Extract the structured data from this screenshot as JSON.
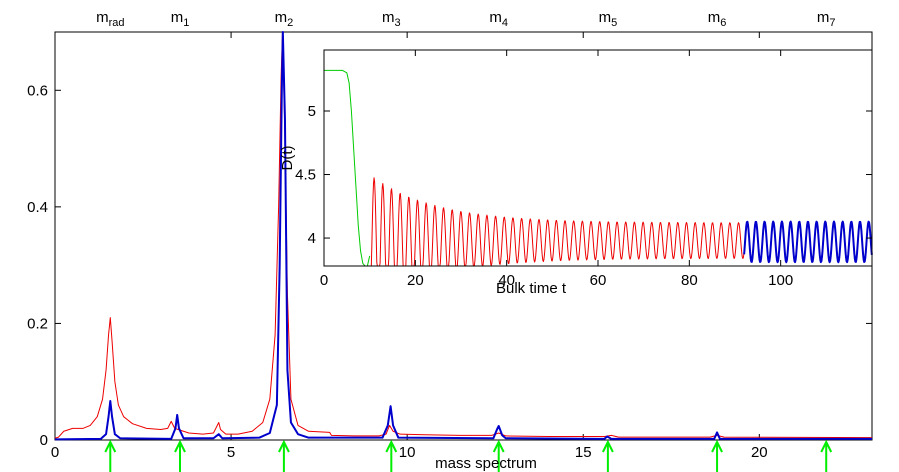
{
  "chart_data": [
    {
      "type": "line",
      "title": "",
      "xlabel": "mass spectrum",
      "ylabel": "",
      "xlim": [
        0,
        23.2
      ],
      "ylim": [
        0,
        0.7
      ],
      "xticks": [
        0,
        5,
        10,
        15,
        20
      ],
      "yticks": [
        0,
        0.2,
        0.4,
        0.6
      ],
      "ytick_labels": [
        "0",
        "0.2",
        "0.4",
        "0.6"
      ],
      "top_labels": [
        {
          "base": "m",
          "sub": "rad",
          "x": 1.57
        },
        {
          "base": "m",
          "sub": "1",
          "x": 3.55
        },
        {
          "base": "m",
          "sub": "2",
          "x": 6.5
        },
        {
          "base": "m",
          "sub": "3",
          "x": 9.55
        },
        {
          "base": "m",
          "sub": "4",
          "x": 12.6
        },
        {
          "base": "m",
          "sub": "5",
          "x": 15.7
        },
        {
          "base": "m",
          "sub": "6",
          "x": 18.8
        },
        {
          "base": "m",
          "sub": "7",
          "x": 21.9
        }
      ],
      "arrows_x": [
        1.57,
        3.55,
        6.5,
        9.55,
        12.6,
        15.7,
        18.8,
        21.9
      ],
      "arrow_color": "#00ee00",
      "series": [
        {
          "color": "#ee0000",
          "baseline": 0.004,
          "points": [
            [
              0,
              0.003
            ],
            [
              0.1,
              0.005
            ],
            [
              0.25,
              0.015
            ],
            [
              0.5,
              0.02
            ],
            [
              0.8,
              0.02
            ],
            [
              1.0,
              0.025
            ],
            [
              1.2,
              0.04
            ],
            [
              1.35,
              0.07
            ],
            [
              1.45,
              0.12
            ],
            [
              1.52,
              0.18
            ],
            [
              1.57,
              0.21
            ],
            [
              1.62,
              0.17
            ],
            [
              1.7,
              0.1
            ],
            [
              1.8,
              0.06
            ],
            [
              1.95,
              0.04
            ],
            [
              2.2,
              0.028
            ],
            [
              2.6,
              0.02
            ],
            [
              3.0,
              0.018
            ],
            [
              3.2,
              0.02
            ],
            [
              3.3,
              0.032
            ],
            [
              3.4,
              0.02
            ],
            [
              3.8,
              0.012
            ],
            [
              4.2,
              0.01
            ],
            [
              4.5,
              0.012
            ],
            [
              4.65,
              0.03
            ],
            [
              4.7,
              0.018
            ],
            [
              4.85,
              0.01
            ],
            [
              5.2,
              0.01
            ],
            [
              5.6,
              0.015
            ],
            [
              5.9,
              0.03
            ],
            [
              6.1,
              0.07
            ],
            [
              6.25,
              0.18
            ],
            [
              6.35,
              0.4
            ],
            [
              6.42,
              0.62
            ],
            [
              6.46,
              0.7
            ],
            [
              6.52,
              0.55
            ],
            [
              6.6,
              0.25
            ],
            [
              6.7,
              0.07
            ],
            [
              6.9,
              0.025
            ],
            [
              7.2,
              0.015
            ],
            [
              7.8,
              0.013
            ],
            [
              7.85,
              0.008
            ],
            [
              8.5,
              0.007
            ],
            [
              9.2,
              0.007
            ],
            [
              9.4,
              0.01
            ],
            [
              9.5,
              0.025
            ],
            [
              9.6,
              0.015
            ],
            [
              9.8,
              0.01
            ],
            [
              10.5,
              0.009
            ],
            [
              11.5,
              0.008
            ],
            [
              12.4,
              0.008
            ],
            [
              12.6,
              0.012
            ],
            [
              12.8,
              0.007
            ],
            [
              14,
              0.006
            ],
            [
              15.6,
              0.006
            ],
            [
              15.8,
              0.008
            ],
            [
              16,
              0.005
            ],
            [
              18.6,
              0.005
            ],
            [
              18.8,
              0.008
            ],
            [
              19,
              0.005
            ],
            [
              23.2,
              0.004
            ]
          ]
        },
        {
          "color": "#0000cc",
          "baseline": 0.002,
          "points": [
            [
              0,
              0.001
            ],
            [
              1.3,
              0.002
            ],
            [
              1.45,
              0.01
            ],
            [
              1.52,
              0.04
            ],
            [
              1.57,
              0.067
            ],
            [
              1.62,
              0.04
            ],
            [
              1.7,
              0.01
            ],
            [
              1.85,
              0.003
            ],
            [
              3.3,
              0.002
            ],
            [
              3.42,
              0.02
            ],
            [
              3.47,
              0.043
            ],
            [
              3.52,
              0.02
            ],
            [
              3.65,
              0.003
            ],
            [
              4.5,
              0.003
            ],
            [
              4.65,
              0.01
            ],
            [
              4.75,
              0.003
            ],
            [
              5.8,
              0.004
            ],
            [
              6.1,
              0.012
            ],
            [
              6.3,
              0.06
            ],
            [
              6.38,
              0.3
            ],
            [
              6.44,
              0.6
            ],
            [
              6.47,
              0.7
            ],
            [
              6.53,
              0.55
            ],
            [
              6.6,
              0.12
            ],
            [
              6.7,
              0.03
            ],
            [
              6.9,
              0.01
            ],
            [
              7.2,
              0.004
            ],
            [
              9.3,
              0.004
            ],
            [
              9.45,
              0.025
            ],
            [
              9.53,
              0.058
            ],
            [
              9.6,
              0.025
            ],
            [
              9.75,
              0.004
            ],
            [
              12.45,
              0.003
            ],
            [
              12.55,
              0.018
            ],
            [
              12.6,
              0.024
            ],
            [
              12.7,
              0.008
            ],
            [
              12.8,
              0.003
            ],
            [
              15.6,
              0.002
            ],
            [
              15.68,
              0.006
            ],
            [
              15.8,
              0.002
            ],
            [
              18.72,
              0.002
            ],
            [
              18.8,
              0.013
            ],
            [
              18.88,
              0.002
            ],
            [
              23.2,
              0.002
            ]
          ]
        }
      ]
    },
    {
      "type": "line",
      "title": "",
      "xlabel": "Bulk time t",
      "ylabel": "D(t)",
      "xlim": [
        0,
        120
      ],
      "ylim": [
        3.78,
        5.48
      ],
      "xticks": [
        0,
        20,
        40,
        60,
        80,
        100
      ],
      "yticks": [
        4,
        4.5,
        5
      ],
      "ytick_labels": [
        "4",
        "4.5",
        "5"
      ],
      "series": [
        {
          "color": "#00cc00",
          "points": [
            [
              0,
              5.32
            ],
            [
              2,
              5.32
            ],
            [
              4,
              5.32
            ],
            [
              5,
              5.3
            ],
            [
              5.5,
              5.22
            ],
            [
              6,
              5.0
            ],
            [
              6.5,
              4.7
            ],
            [
              7,
              4.4
            ],
            [
              7.5,
              4.1
            ],
            [
              8,
              3.9
            ],
            [
              8.5,
              3.8
            ],
            [
              9,
              3.76
            ],
            [
              9.5,
              3.78
            ],
            [
              10,
              3.86
            ]
          ]
        },
        {
          "color": "#ee0000",
          "t_start": 10,
          "t_end": 92,
          "center": 3.98,
          "amp_start": 0.52,
          "amp_end": 0.14,
          "decay": 14,
          "period": 1.9,
          "phase": 10.5
        },
        {
          "color": "#0000cc",
          "t_start": 92,
          "t_end": 120,
          "center": 3.97,
          "amp": 0.16,
          "period": 1.9,
          "phase": 10.5
        }
      ]
    }
  ]
}
